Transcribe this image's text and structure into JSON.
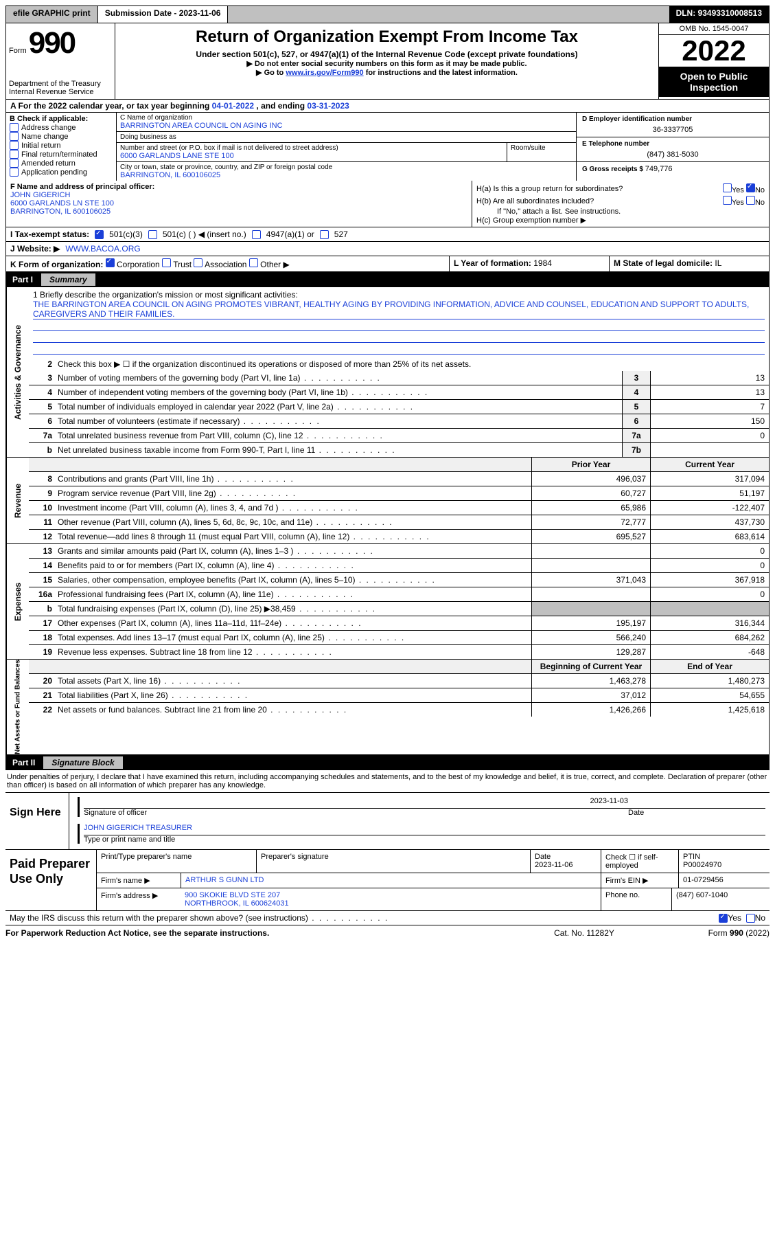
{
  "topbar": {
    "efile": "efile GRAPHIC print",
    "submission": "Submission Date - 2023-11-06",
    "dln": "DLN: 93493310008513"
  },
  "header": {
    "form_word": "Form",
    "form_num": "990",
    "dept": "Department of the Treasury\nInternal Revenue Service",
    "title": "Return of Organization Exempt From Income Tax",
    "sub1": "Under section 501(c), 527, or 4947(a)(1) of the Internal Revenue Code (except private foundations)",
    "sub2": "▶ Do not enter social security numbers on this form as it may be made public.",
    "sub3_pre": "▶ Go to ",
    "sub3_link": "www.irs.gov/Form990",
    "sub3_post": " for instructions and the latest information.",
    "omb": "OMB No. 1545-0047",
    "year": "2022",
    "otp": "Open to Public Inspection"
  },
  "rowA": {
    "label": "A For the 2022 calendar year, or tax year beginning ",
    "begin": "04-01-2022",
    "mid": "   , and ending ",
    "end": "03-31-2023"
  },
  "colB": {
    "hdr": "B Check if applicable:",
    "items": [
      "Address change",
      "Name change",
      "Initial return",
      "Final return/terminated",
      "Amended return",
      "Application pending"
    ]
  },
  "colC": {
    "name_lbl": "C Name of organization",
    "name": "BARRINGTON AREA COUNCIL ON AGING INC",
    "dba_lbl": "Doing business as",
    "dba": "",
    "addr_lbl": "Number and street (or P.O. box if mail is not delivered to street address)",
    "room_lbl": "Room/suite",
    "addr": "6000 GARLANDS LANE STE 100",
    "city_lbl": "City or town, state or province, country, and ZIP or foreign postal code",
    "city": "BARRINGTON, IL  600106025"
  },
  "colD": {
    "ein_lbl": "D Employer identification number",
    "ein": "36-3337705",
    "tel_lbl": "E Telephone number",
    "tel": "(847) 381-5030",
    "gross_lbl": "G Gross receipts $ ",
    "gross": "749,776"
  },
  "rowF": {
    "lbl": "F Name and address of principal officer:",
    "name": "JOHN GIGERICH",
    "addr1": "6000 GARLANDS LN STE 100",
    "addr2": "BARRINGTON, IL  600106025",
    "ha": "H(a)  Is this a group return for subordinates?",
    "hb": "H(b)  Are all subordinates included?",
    "hb_note": "If \"No,\" attach a list. See instructions.",
    "hc": "H(c)  Group exemption number ▶"
  },
  "rowI": {
    "lbl": "I    Tax-exempt status:",
    "o1": "501(c)(3)",
    "o2": "501(c) (  ) ◀ (insert no.)",
    "o3": "4947(a)(1) or",
    "o4": "527"
  },
  "rowJ": {
    "lbl": "J   Website: ▶",
    "val": "WWW.BACOA.ORG"
  },
  "rowK": {
    "lbl": "K Form of organization:",
    "o1": "Corporation",
    "o2": "Trust",
    "o3": "Association",
    "o4": "Other ▶",
    "l_lbl": "L Year of formation: ",
    "l_val": "1984",
    "m_lbl": "M State of legal domicile: ",
    "m_val": "IL"
  },
  "part1": {
    "num": "Part I",
    "title": "Summary"
  },
  "mission": {
    "line1_lbl": "1   Briefly describe the organization's mission or most significant activities:",
    "text": "THE BARRINGTON AREA COUNCIL ON AGING PROMOTES VIBRANT, HEALTHY AGING BY PROVIDING INFORMATION, ADVICE AND COUNSEL, EDUCATION AND SUPPORT TO ADULTS, CAREGIVERS AND THEIR FAMILIES."
  },
  "gov_rows": [
    {
      "n": "2",
      "t": "Check this box ▶ ☐ if the organization discontinued its operations or disposed of more than 25% of its net assets."
    },
    {
      "n": "3",
      "t": "Number of voting members of the governing body (Part VI, line 1a)",
      "c1": "3",
      "v": "13"
    },
    {
      "n": "4",
      "t": "Number of independent voting members of the governing body (Part VI, line 1b)",
      "c1": "4",
      "v": "13"
    },
    {
      "n": "5",
      "t": "Total number of individuals employed in calendar year 2022 (Part V, line 2a)",
      "c1": "5",
      "v": "7"
    },
    {
      "n": "6",
      "t": "Total number of volunteers (estimate if necessary)",
      "c1": "6",
      "v": "150"
    },
    {
      "n": "7a",
      "t": "Total unrelated business revenue from Part VIII, column (C), line 12",
      "c1": "7a",
      "v": "0"
    },
    {
      "n": "b",
      "t": "Net unrelated business taxable income from Form 990-T, Part I, line 11",
      "c1": "7b",
      "v": ""
    }
  ],
  "rev_hdr": {
    "c2": "Prior Year",
    "c3": "Current Year"
  },
  "rev_rows": [
    {
      "n": "8",
      "t": "Contributions and grants (Part VIII, line 1h)",
      "py": "496,037",
      "cy": "317,094"
    },
    {
      "n": "9",
      "t": "Program service revenue (Part VIII, line 2g)",
      "py": "60,727",
      "cy": "51,197"
    },
    {
      "n": "10",
      "t": "Investment income (Part VIII, column (A), lines 3, 4, and 7d )",
      "py": "65,986",
      "cy": "-122,407"
    },
    {
      "n": "11",
      "t": "Other revenue (Part VIII, column (A), lines 5, 6d, 8c, 9c, 10c, and 11e)",
      "py": "72,777",
      "cy": "437,730"
    },
    {
      "n": "12",
      "t": "Total revenue—add lines 8 through 11 (must equal Part VIII, column (A), line 12)",
      "py": "695,527",
      "cy": "683,614"
    }
  ],
  "exp_rows": [
    {
      "n": "13",
      "t": "Grants and similar amounts paid (Part IX, column (A), lines 1–3 )",
      "py": "",
      "cy": "0"
    },
    {
      "n": "14",
      "t": "Benefits paid to or for members (Part IX, column (A), line 4)",
      "py": "",
      "cy": "0"
    },
    {
      "n": "15",
      "t": "Salaries, other compensation, employee benefits (Part IX, column (A), lines 5–10)",
      "py": "371,043",
      "cy": "367,918"
    },
    {
      "n": "16a",
      "t": "Professional fundraising fees (Part IX, column (A), line 11e)",
      "py": "",
      "cy": "0"
    },
    {
      "n": "b",
      "t": "Total fundraising expenses (Part IX, column (D), line 25) ▶38,459",
      "py": "",
      "cy": "",
      "shade": true
    },
    {
      "n": "17",
      "t": "Other expenses (Part IX, column (A), lines 11a–11d, 11f–24e)",
      "py": "195,197",
      "cy": "316,344"
    },
    {
      "n": "18",
      "t": "Total expenses. Add lines 13–17 (must equal Part IX, column (A), line 25)",
      "py": "566,240",
      "cy": "684,262"
    },
    {
      "n": "19",
      "t": "Revenue less expenses. Subtract line 18 from line 12",
      "py": "129,287",
      "cy": "-648"
    }
  ],
  "na_hdr": {
    "c2": "Beginning of Current Year",
    "c3": "End of Year"
  },
  "na_rows": [
    {
      "n": "20",
      "t": "Total assets (Part X, line 16)",
      "py": "1,463,278",
      "cy": "1,480,273"
    },
    {
      "n": "21",
      "t": "Total liabilities (Part X, line 26)",
      "py": "37,012",
      "cy": "54,655"
    },
    {
      "n": "22",
      "t": "Net assets or fund balances. Subtract line 21 from line 20",
      "py": "1,426,266",
      "cy": "1,425,618"
    }
  ],
  "vlabels": {
    "gov": "Activities & Governance",
    "rev": "Revenue",
    "exp": "Expenses",
    "na": "Net Assets or Fund Balances"
  },
  "part2": {
    "num": "Part II",
    "title": "Signature Block"
  },
  "sig_intro": "Under penalties of perjury, I declare that I have examined this return, including accompanying schedules and statements, and to the best of my knowledge and belief, it is true, correct, and complete. Declaration of preparer (other than officer) is based on all information of which preparer has any knowledge.",
  "sign": {
    "lbl": "Sign Here",
    "date": "2023-11-03",
    "sig_lbl": "Signature of officer",
    "date_lbl": "Date",
    "name": "JOHN GIGERICH  TREASURER",
    "name_lbl": "Type or print name and title"
  },
  "prep": {
    "lbl": "Paid Preparer Use Only",
    "r1": {
      "a": "Print/Type preparer's name",
      "b": "Preparer's signature",
      "c": "Date\n2023-11-06",
      "d": "Check ☐ if self-employed",
      "e": "PTIN\nP00024970"
    },
    "r2": {
      "a": "Firm's name    ▶",
      "b": "ARTHUR S GUNN LTD",
      "c": "Firm's EIN ▶",
      "d": "01-0729456"
    },
    "r3": {
      "a": "Firm's address ▶",
      "b": "900 SKOKIE BLVD STE 207",
      "c": "Phone no. ",
      "d": "(847) 607-1040"
    },
    "r3b": "NORTHBROOK, IL  600624031"
  },
  "may": {
    "t": "May the IRS discuss this return with the preparer shown above? (see instructions)",
    "yes": "Yes",
    "no": "No"
  },
  "footer": {
    "l": "For Paperwork Reduction Act Notice, see the separate instructions.",
    "m": "Cat. No. 11282Y",
    "r": "Form 990 (2022)"
  }
}
